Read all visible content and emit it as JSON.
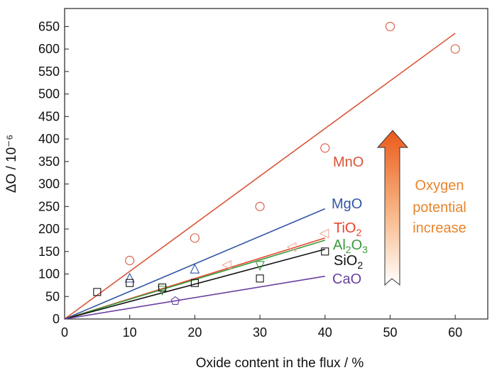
{
  "chart_data": {
    "type": "scatter",
    "xlabel": "Oxide content in the flux / %",
    "ylabel": "ΔO / 10⁻⁶",
    "xlim": [
      0,
      65
    ],
    "ylim": [
      0,
      690
    ],
    "xticks": [
      0,
      10,
      20,
      30,
      40,
      50,
      60
    ],
    "yticks": [
      0,
      50,
      100,
      150,
      200,
      250,
      300,
      350,
      400,
      450,
      500,
      550,
      600,
      650
    ],
    "grid": false,
    "series": [
      {
        "label": "MnO",
        "color": "#d9553a",
        "marker": "circle",
        "points": [
          [
            10,
            130
          ],
          [
            20,
            180
          ],
          [
            30,
            250
          ],
          [
            40,
            380
          ],
          [
            50,
            650
          ],
          [
            60,
            600
          ]
        ],
        "fit": [
          [
            0,
            0
          ],
          [
            60,
            635
          ]
        ]
      },
      {
        "label": "MgO",
        "color": "#3356a6",
        "marker": "triangle-up",
        "points": [
          [
            10,
            90
          ],
          [
            20,
            110
          ]
        ],
        "fit": [
          [
            0,
            0
          ],
          [
            40,
            245
          ]
        ]
      },
      {
        "label": "TiO2",
        "color": "#e8432c",
        "marker": "triangle-left",
        "points": [
          [
            25,
            120
          ],
          [
            35,
            160
          ],
          [
            40,
            190
          ]
        ],
        "fit": [
          [
            0,
            0
          ],
          [
            40,
            180
          ]
        ]
      },
      {
        "label": "Al2O3",
        "color": "#3a9a3a",
        "marker": "triangle-down",
        "points": [
          [
            15,
            65
          ],
          [
            30,
            120
          ]
        ],
        "fit": [
          [
            0,
            0
          ],
          [
            40,
            175
          ]
        ]
      },
      {
        "label": "SiO2",
        "color": "#111111",
        "marker": "square",
        "points": [
          [
            5,
            60
          ],
          [
            10,
            80
          ],
          [
            15,
            70
          ],
          [
            20,
            80
          ],
          [
            30,
            90
          ],
          [
            40,
            150
          ]
        ],
        "fit": [
          [
            0,
            0
          ],
          [
            40,
            155
          ]
        ]
      },
      {
        "label": "CaO",
        "color": "#6a3fa0",
        "marker": "pentagon",
        "points": [
          [
            17,
            40
          ]
        ],
        "fit": [
          [
            0,
            0
          ],
          [
            40,
            95
          ]
        ]
      }
    ],
    "labels": [
      {
        "text": "MnO",
        "color": "#d9553a"
      },
      {
        "text": "MgO",
        "color": "#3356a6"
      },
      {
        "text": "TiO",
        "sub": "2",
        "color": "#e8432c"
      },
      {
        "text": "Al",
        "sub": "2",
        "text2": "O",
        "sub2": "3",
        "color": "#3a9a3a"
      },
      {
        "text": "SiO",
        "sub": "2",
        "color": "#111111"
      },
      {
        "text": "CaO",
        "color": "#6a3fa0"
      }
    ],
    "annotation": {
      "lines": [
        "Oxygen",
        "potential",
        "increase"
      ],
      "color": "#e8842c",
      "arrow": "gradient-up-arrow"
    }
  }
}
